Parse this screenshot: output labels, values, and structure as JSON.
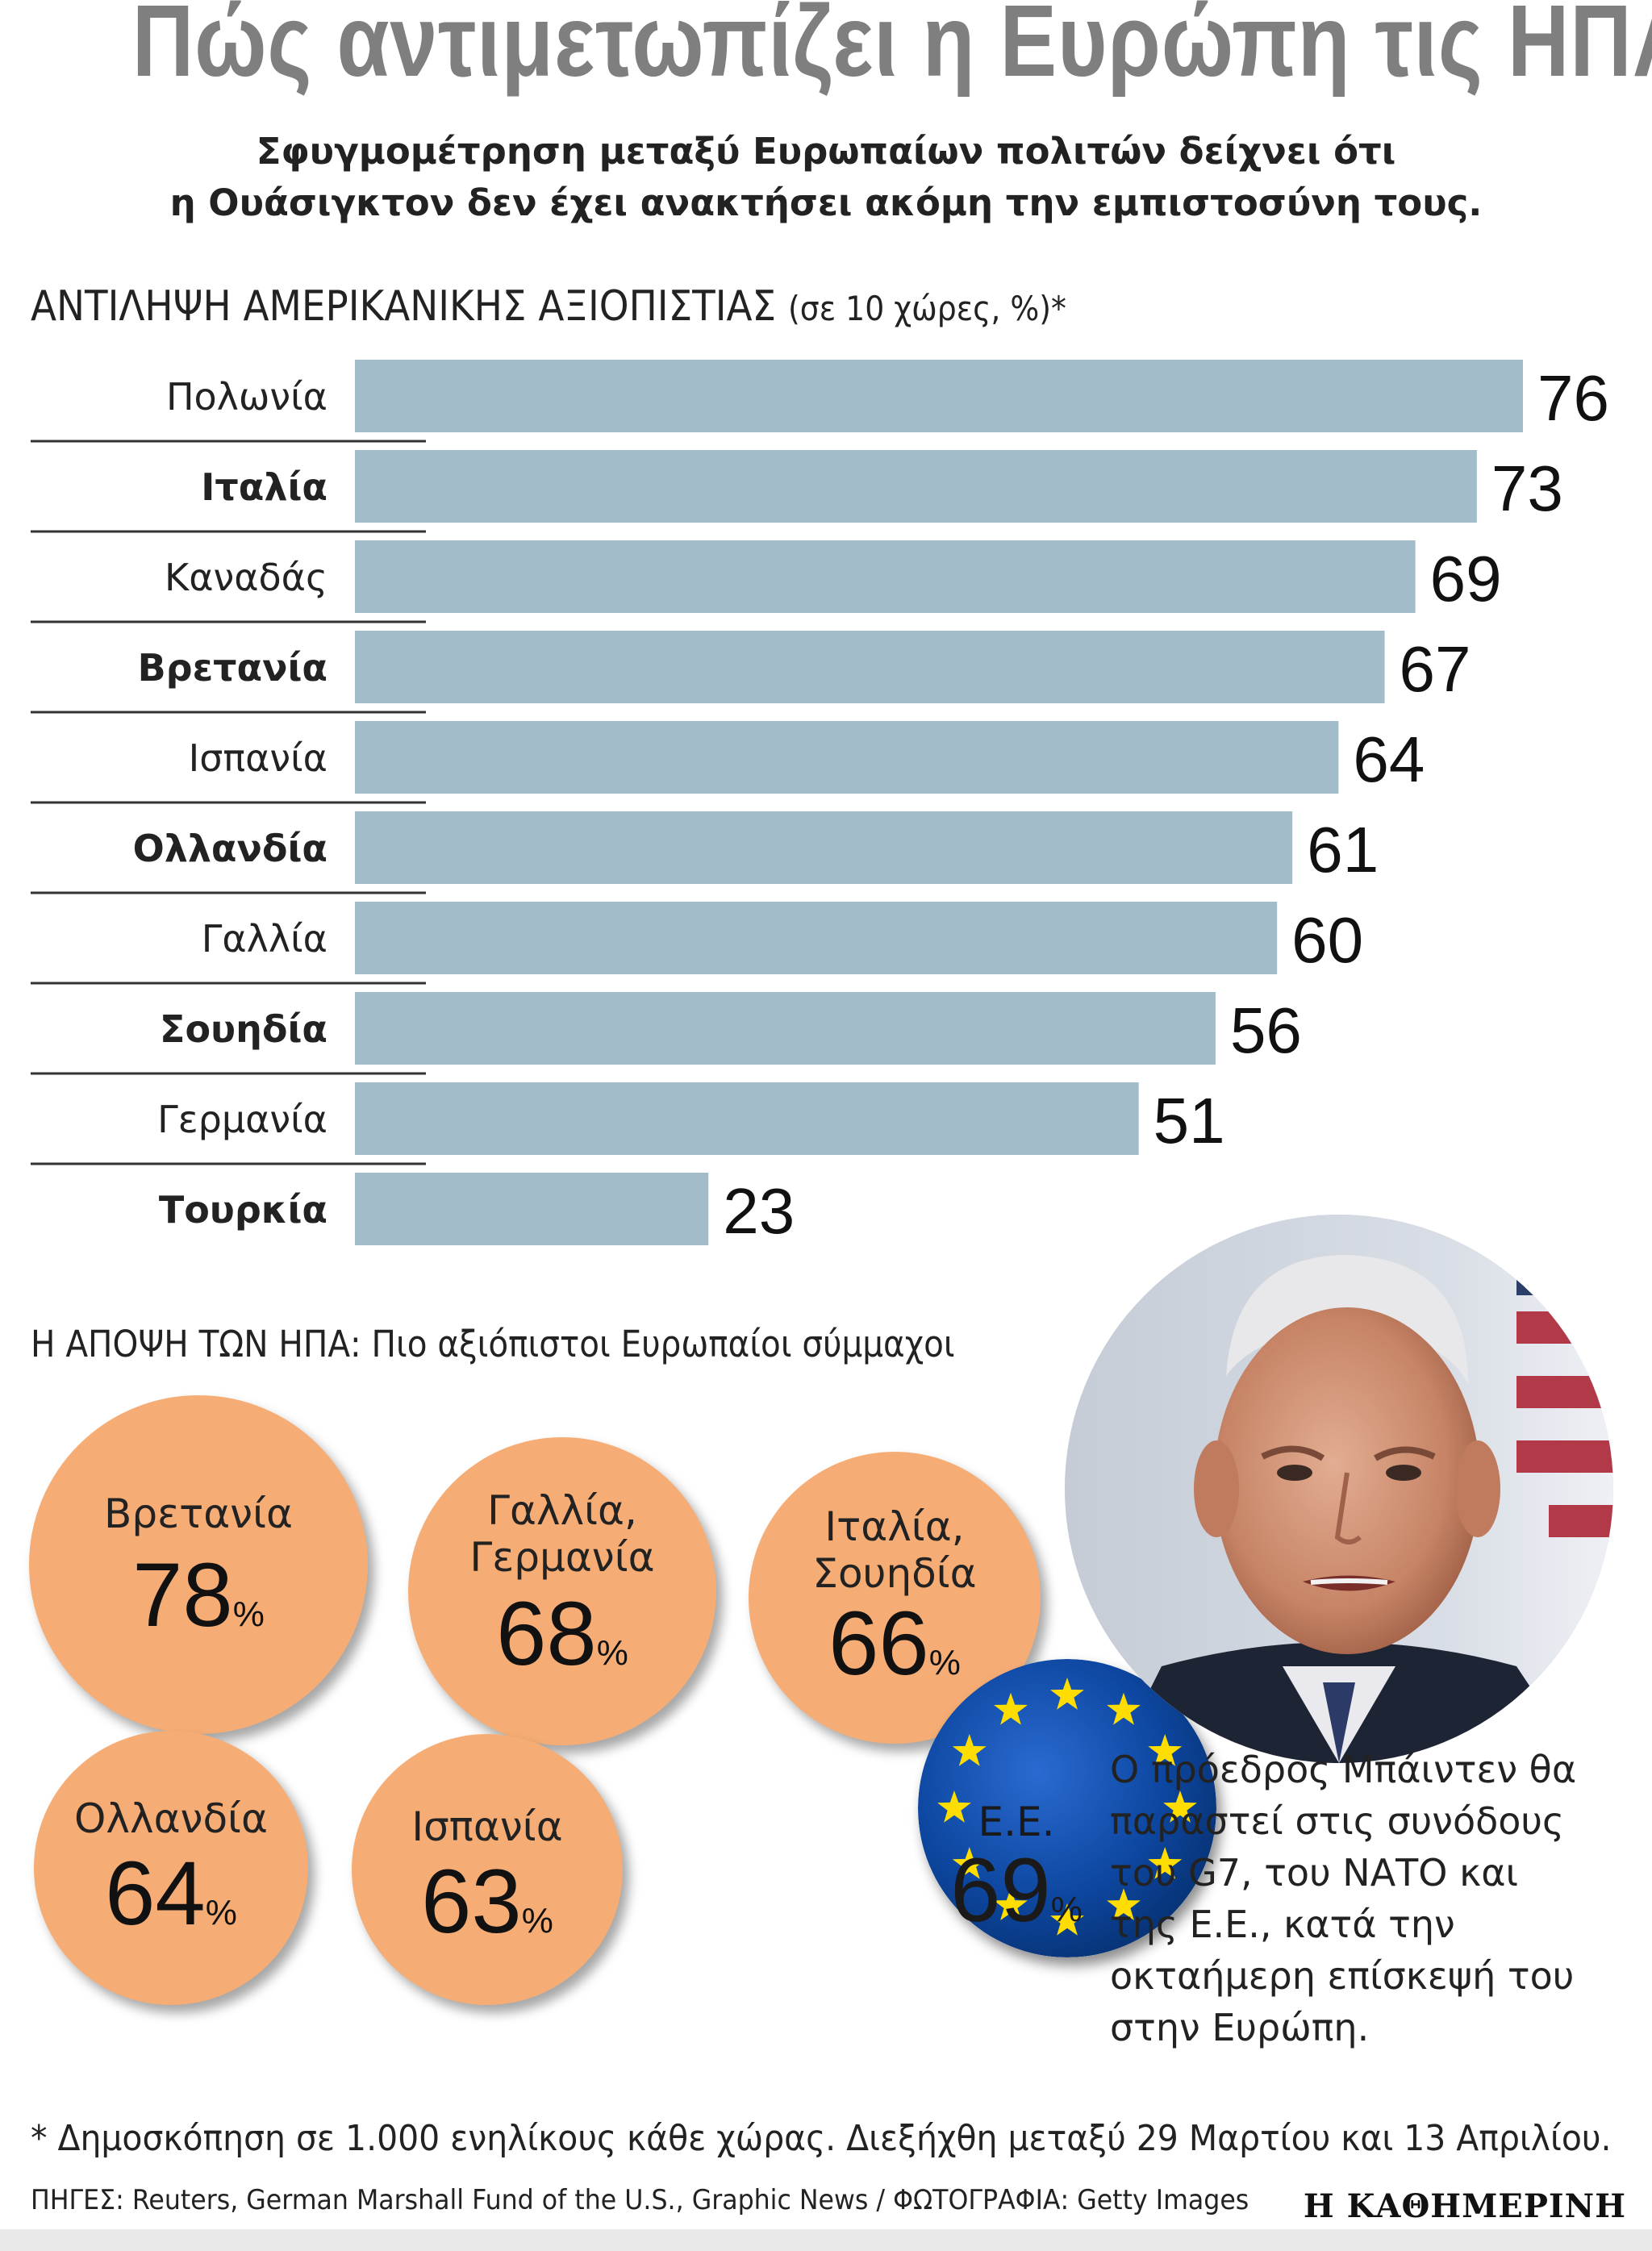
{
  "title": "Πώς αντιμετωπίζει η Ευρώπη τις ΗΠΑ",
  "subtitle_line1": "Σφυγμομέτρηση μεταξύ Ευρωπαίων πολιτών δείχνει ότι",
  "subtitle_line2": "η Ουάσιγκτον δεν έχει ανακτήσει ακόμη την εμπιστοσύνη τους.",
  "section1": {
    "heading": "ΑΝΤΙΛΗΨΗ ΑΜΕΡΙΚΑΝΙΚΗΣ ΑΞΙΟΠΙΣΤΙΑΣ",
    "note": "(σε 10 χώρες, %)*"
  },
  "colors": {
    "bar": "#a3bcc9",
    "bubble": "#f6ad75",
    "eu_blue": "#0d47a1",
    "eu_star": "#ffdd00",
    "title": "#7f7f80"
  },
  "chart_data": {
    "type": "bar",
    "orientation": "horizontal",
    "title": "ΑΝΤΙΛΗΨΗ ΑΜΕΡΙΚΑΝΙΚΗΣ ΑΞΙΟΠΙΣΤΙΑΣ (σε 10 χώρες, %)*",
    "categories": [
      "Πολωνία",
      "Ιταλία",
      "Καναδάς",
      "Βρετανία",
      "Ισπανία",
      "Ολλανδία",
      "Γαλλία",
      "Σουηδία",
      "Γερμανία",
      "Τουρκία"
    ],
    "values": [
      76,
      73,
      69,
      67,
      64,
      61,
      60,
      56,
      51,
      23
    ],
    "bold": [
      false,
      true,
      false,
      true,
      false,
      true,
      false,
      true,
      false,
      true
    ],
    "xlim": [
      0,
      76
    ],
    "xlabel": "",
    "ylabel": ""
  },
  "section2": {
    "heading": "Η ΑΠΟΨΗ ΤΩΝ ΗΠΑ: Πιο αξιόπιστοι Ευρωπαίοι σύμμαχοι",
    "bubbles": [
      {
        "line1": "Βρετανία",
        "line2": "",
        "value": "78"
      },
      {
        "line1": "Γαλλία,",
        "line2": "Γερμανία",
        "value": "68"
      },
      {
        "line1": "Ιταλία,",
        "line2": "Σουηδία",
        "value": "66"
      },
      {
        "line1": "Ολλανδία",
        "line2": "",
        "value": "64"
      },
      {
        "line1": "Ισπανία",
        "line2": "",
        "value": "63"
      }
    ],
    "pct_sign": "%",
    "eu": {
      "label": "Ε.Ε.",
      "value": "69"
    }
  },
  "photo_caption": "Ο πρόεδρος Μπάιντεν θα παραστεί στις συνόδους του G7, του ΝΑΤΟ και της Ε.Ε., κατά την οκταήμερη επίσκεψή του στην Ευρώπη.",
  "footnote": "* Δημοσκόπηση σε 1.000 ενηλίκους κάθε χώρας. Διεξήχθη μεταξύ 29 Μαρτίου και 13 Απριλίου.",
  "sources": "ΠΗΓΕΣ: Reuters, German Marshall Fund of the U.S., Graphic News / ΦΩΤΟΓΡΑΦΙΑ: Getty Images",
  "brand": "Η ΚΑΘΗΜΕΡΙΝΗ"
}
